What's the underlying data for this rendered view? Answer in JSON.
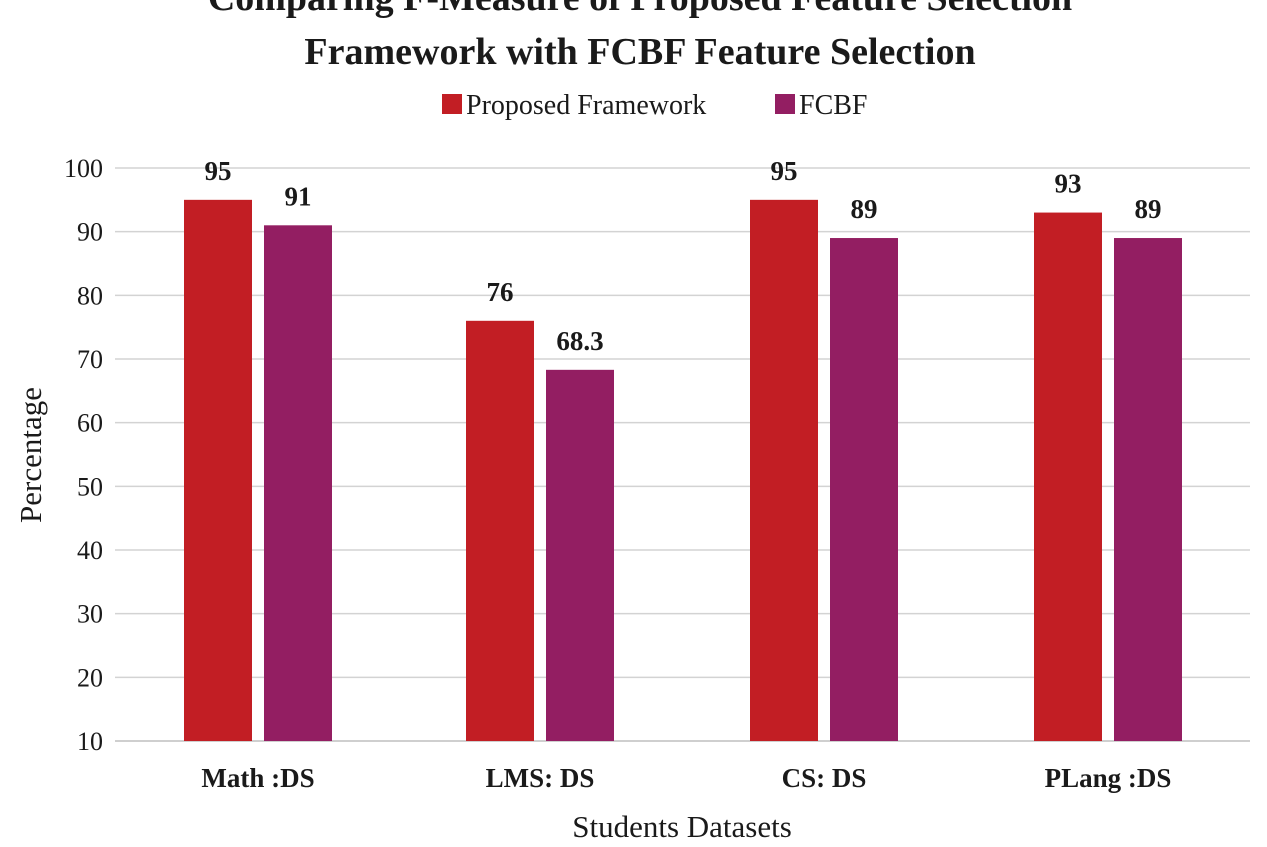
{
  "chart_data": {
    "type": "bar",
    "title_line1": "Comparing F-Measure of Proposed Feature Selection",
    "title_line2": "Framework with FCBF Feature Selection",
    "xlabel": "Students Datasets",
    "ylabel": "Percentage",
    "categories": [
      "Math :DS",
      "LMS: DS",
      "CS: DS",
      "PLang :DS"
    ],
    "series": [
      {
        "name": "Proposed Framework",
        "color": "#c21e24",
        "values": [
          95,
          76,
          95,
          93
        ]
      },
      {
        "name": "FCBF",
        "color": "#931e62",
        "values": [
          91,
          68.3,
          89,
          89
        ]
      }
    ],
    "data_labels": [
      [
        "95",
        "76",
        "95",
        "93"
      ],
      [
        "91",
        "68.3",
        "89",
        "89"
      ]
    ],
    "yticks": [
      "10",
      "20",
      "30",
      "40",
      "50",
      "60",
      "70",
      "80",
      "90",
      "100"
    ],
    "ylim": [
      10,
      100
    ],
    "grid": true,
    "legend_position": "top-center"
  }
}
